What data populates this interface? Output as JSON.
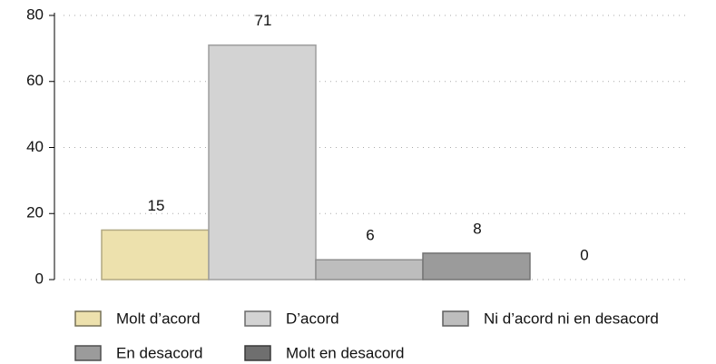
{
  "chart_data": {
    "type": "bar",
    "categories": [
      "Molt d’acord",
      "D’acord",
      "Ni d’acord ni en desacord",
      "En desacord",
      "Molt en desacord"
    ],
    "values": [
      15,
      71,
      6,
      8,
      0
    ],
    "colors": [
      "#ede1ad",
      "#d3d3d3",
      "#bdbdbd",
      "#9b9b9b",
      "#6f6f6f"
    ],
    "ylim": [
      0,
      80
    ],
    "yticks": [
      0,
      20,
      40,
      60,
      80
    ],
    "grid": true,
    "legend": "bottom"
  }
}
